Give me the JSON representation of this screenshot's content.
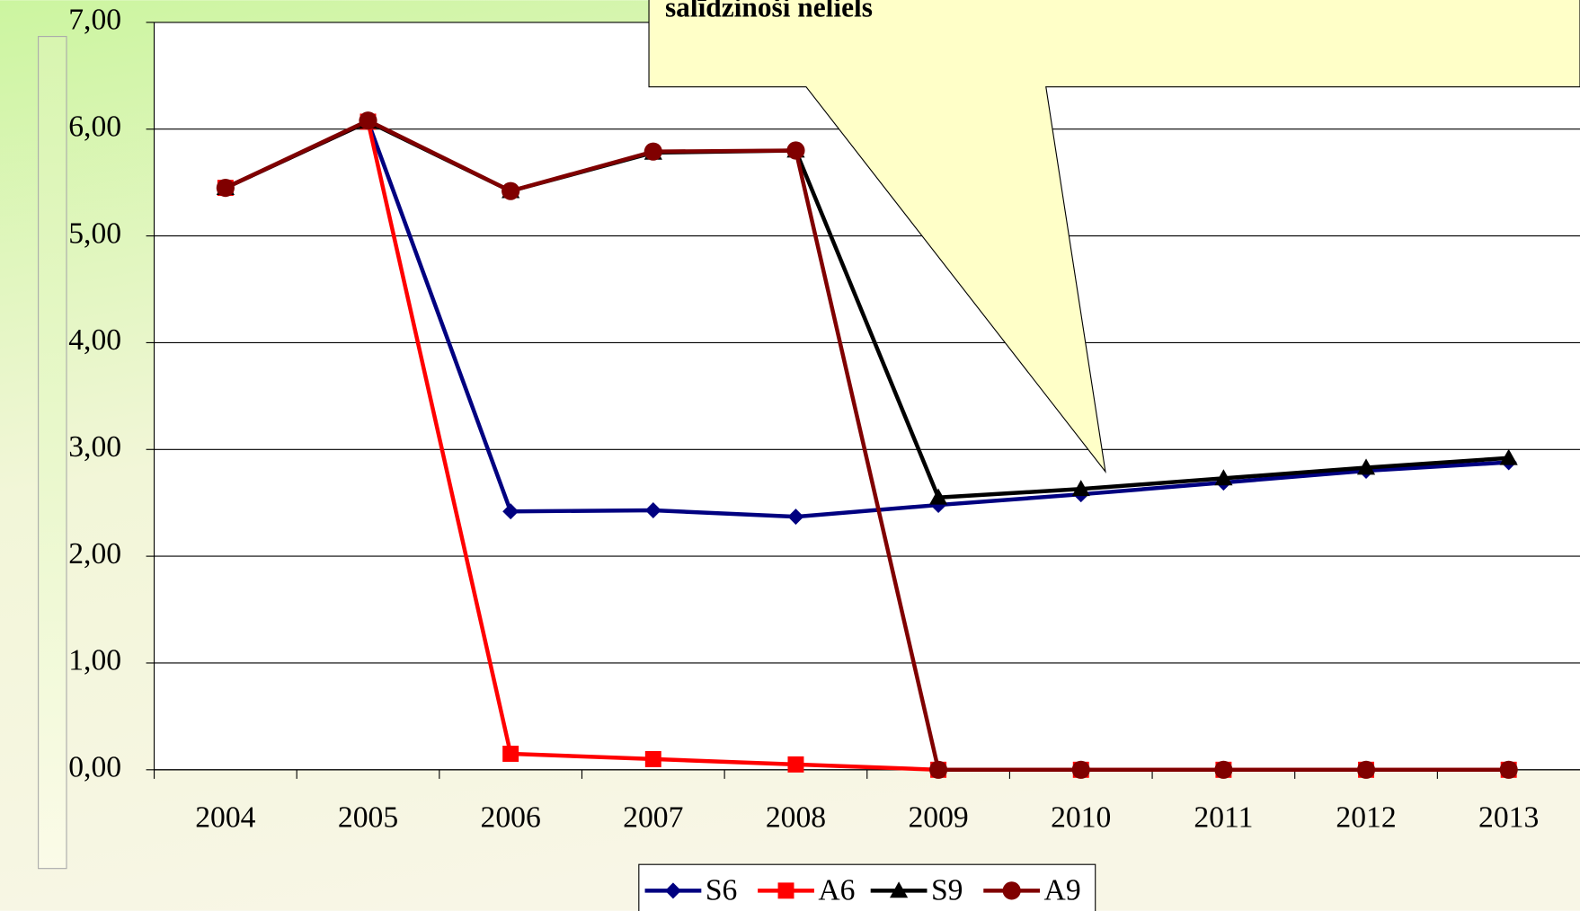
{
  "chart_data": {
    "type": "line",
    "annotation": "salīdzinoši neliels",
    "categories": [
      "2004",
      "2005",
      "2006",
      "2007",
      "2008",
      "2009",
      "2010",
      "2011",
      "2012",
      "2013"
    ],
    "series": [
      {
        "name": "S6",
        "color": "#000080",
        "marker": "diamond",
        "values": [
          5.45,
          6.07,
          2.42,
          2.43,
          2.37,
          2.48,
          2.58,
          2.69,
          2.8,
          2.88
        ]
      },
      {
        "name": "A6",
        "color": "#ff0000",
        "marker": "square",
        "values": [
          5.45,
          6.07,
          0.15,
          0.1,
          0.05,
          0,
          0,
          0,
          0,
          0
        ]
      },
      {
        "name": "S9",
        "color": "#000000",
        "marker": "triangle",
        "values": [
          5.45,
          6.07,
          5.42,
          5.78,
          5.8,
          2.55,
          2.63,
          2.73,
          2.83,
          2.92
        ]
      },
      {
        "name": "A9",
        "color": "#800000",
        "marker": "circle",
        "values": [
          5.45,
          6.08,
          5.42,
          5.79,
          5.8,
          0,
          0,
          0,
          0,
          0
        ]
      }
    ],
    "ylim": [
      0,
      7
    ],
    "yticks": [
      {
        "value": 0,
        "label": "0,00"
      },
      {
        "value": 1,
        "label": "1,00"
      },
      {
        "value": 2,
        "label": "2,00"
      },
      {
        "value": 3,
        "label": "3,00"
      },
      {
        "value": 4,
        "label": "4,00"
      },
      {
        "value": 5,
        "label": "5,00"
      },
      {
        "value": 6,
        "label": "6,00"
      },
      {
        "value": 7,
        "label": "7,00"
      }
    ],
    "grid": true,
    "legend": "bottom"
  }
}
